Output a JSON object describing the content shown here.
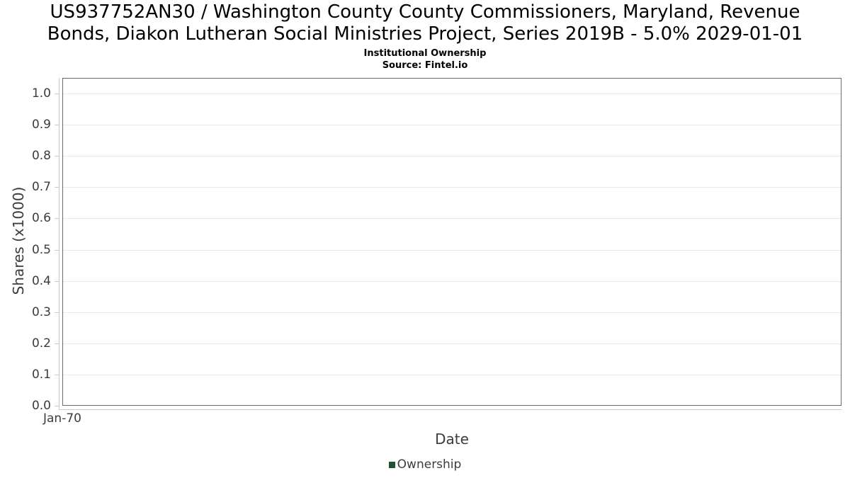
{
  "chart_data": {
    "type": "line",
    "title": "US937752AN30 / Washington County County Commissioners, Maryland, Revenue Bonds, Diakon Lutheran Social Ministries Project, Series 2019B - 5.0% 2029-01-01",
    "title_lines": [
      "US937752AN30 / Washington County County Commissioners, Maryland, Revenue",
      "Bonds, Diakon Lutheran Social Ministries Project, Series 2019B - 5.0% 2029-01-01"
    ],
    "subtitle": "Institutional Ownership",
    "source": "Source: Fintel.io",
    "xlabel": "Date",
    "ylabel": "Shares (x1000)",
    "x": [],
    "series": [
      {
        "name": "Ownership",
        "values": [],
        "color": "#1e5230"
      }
    ],
    "yticks": [
      0.0,
      0.1,
      0.2,
      0.3,
      0.4,
      0.5,
      0.6,
      0.7,
      0.8,
      0.9,
      1.0
    ],
    "ytick_labels": [
      "0.0",
      "0.1",
      "0.2",
      "0.3",
      "0.4",
      "0.5",
      "0.6",
      "0.7",
      "0.8",
      "0.9",
      "1.0"
    ],
    "xtick_labels": [
      "Jan-70"
    ],
    "ylim": [
      0.0,
      1.05
    ],
    "grid": true,
    "legend_position": "bottom",
    "legend": [
      {
        "label": "Ownership",
        "color": "#1e5230"
      }
    ]
  }
}
